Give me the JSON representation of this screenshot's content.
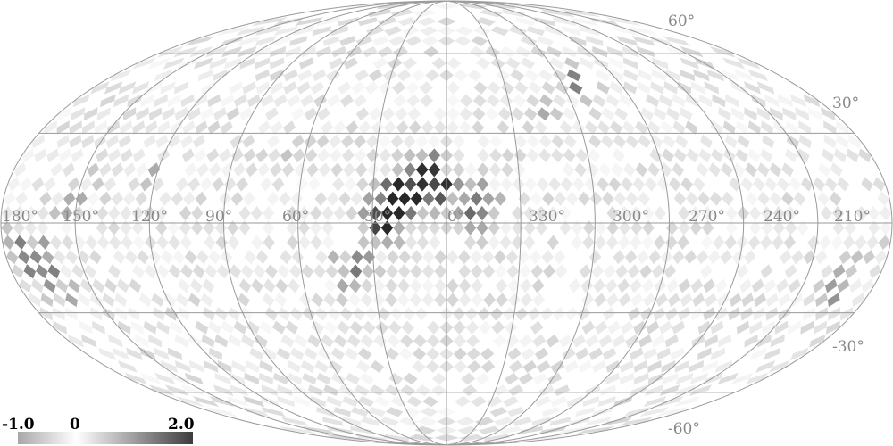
{
  "map": {
    "projection": "mollweide",
    "background_color": "#ffffff",
    "grid_color": "#9a9a9a",
    "label_color": "#888888",
    "longitude_labels": [
      "180°",
      "150°",
      "120°",
      "90°",
      "60°",
      "30°",
      "0°",
      "330°",
      "300°",
      "270°",
      "240°",
      "210°"
    ],
    "latitude_labels": [
      "60°",
      "30°",
      "-30°",
      "-60°"
    ],
    "longitude_lines_deg": [
      150,
      120,
      90,
      60,
      30,
      0,
      -30,
      -60,
      -90,
      -120,
      -150
    ],
    "latitude_lines_deg": [
      60,
      30,
      0,
      -30,
      -60
    ]
  },
  "colorbar": {
    "min_label": "-1.0",
    "mid_label": "0",
    "max_label": "2.0",
    "min": -1.0,
    "max": 2.0
  },
  "hotspots": [
    {
      "lon": 15,
      "lat": 12,
      "strength": 1.9
    },
    {
      "lon": 5,
      "lat": 14,
      "strength": 1.6
    },
    {
      "lon": 22,
      "lat": 5,
      "strength": 1.5
    },
    {
      "lon": -8,
      "lat": 6,
      "strength": 1.3
    },
    {
      "lon": 28,
      "lat": 0,
      "strength": 1.2
    },
    {
      "lon": -15,
      "lat": 3,
      "strength": 1.0
    },
    {
      "lon": 35,
      "lat": -12,
      "strength": 0.8
    },
    {
      "lon": 40,
      "lat": -18,
      "strength": 0.6
    },
    {
      "lon": 170,
      "lat": -10,
      "strength": 1.2
    },
    {
      "lon": 165,
      "lat": -20,
      "strength": 0.9
    },
    {
      "lon": -165,
      "lat": -20,
      "strength": 0.8
    },
    {
      "lon": 150,
      "lat": 8,
      "strength": 0.6
    },
    {
      "lon": 125,
      "lat": 15,
      "strength": 0.6
    },
    {
      "lon": -70,
      "lat": 50,
      "strength": 0.9
    },
    {
      "lon": 60,
      "lat": 25,
      "strength": 0.4
    },
    {
      "lon": -40,
      "lat": 40,
      "strength": 0.5
    }
  ]
}
